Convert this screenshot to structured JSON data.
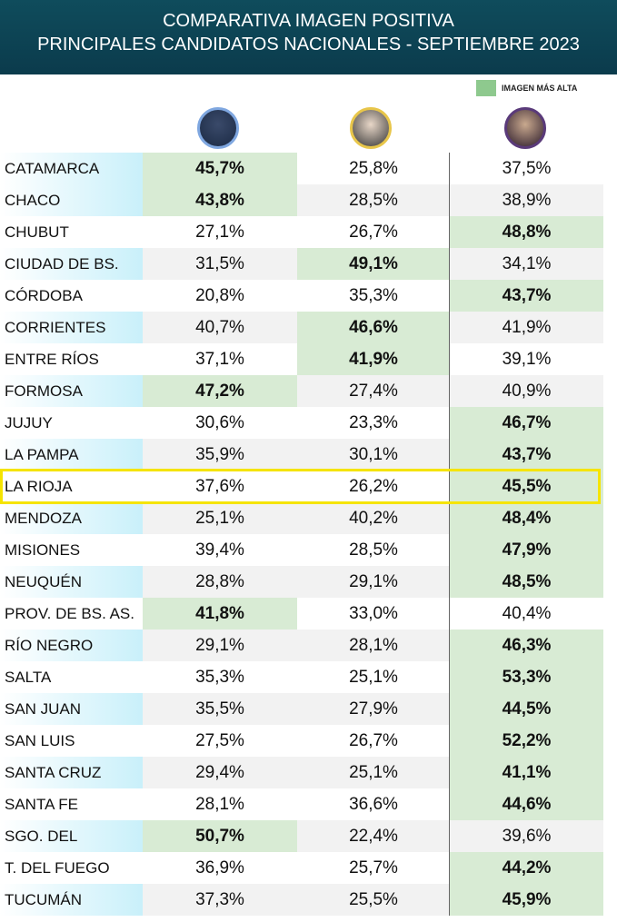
{
  "header": {
    "title_line1": "COMPARATIVA IMAGEN POSITIVA",
    "title_line2": "PRINCIPALES CANDIDATOS NACIONALES - SEPTIEMBRE 2023"
  },
  "legend": {
    "label": "IMAGEN MÁS ALTA",
    "color": "#8ec98e"
  },
  "table": {
    "rows": [
      {
        "name": "CATAMARCA",
        "values": [
          "45,7%",
          "25,8%",
          "37,5%"
        ]
      },
      {
        "name": "CHACO",
        "values": [
          "43,8%",
          "28,5%",
          "38,9%"
        ]
      },
      {
        "name": "CHUBUT",
        "values": [
          "27,1%",
          "26,7%",
          "48,8%"
        ]
      },
      {
        "name": "CIUDAD DE BS. AS.",
        "values": [
          "31,5%",
          "49,1%",
          "34,1%"
        ]
      },
      {
        "name": "CÓRDOBA",
        "values": [
          "20,8%",
          "35,3%",
          "43,7%"
        ]
      },
      {
        "name": "CORRIENTES",
        "values": [
          "40,7%",
          "46,6%",
          "41,9%"
        ]
      },
      {
        "name": "ENTRE RÍOS",
        "values": [
          "37,1%",
          "41,9%",
          "39,1%"
        ]
      },
      {
        "name": "FORMOSA",
        "values": [
          "47,2%",
          "27,4%",
          "40,9%"
        ]
      },
      {
        "name": "JUJUY",
        "values": [
          "30,6%",
          "23,3%",
          "46,7%"
        ]
      },
      {
        "name": "LA PAMPA",
        "values": [
          "35,9%",
          "30,1%",
          "43,7%"
        ]
      },
      {
        "name": "LA RIOJA",
        "values": [
          "37,6%",
          "26,2%",
          "45,5%"
        ],
        "outlined": true
      },
      {
        "name": "MENDOZA",
        "values": [
          "25,1%",
          "40,2%",
          "48,4%"
        ]
      },
      {
        "name": "MISIONES",
        "values": [
          "39,4%",
          "28,5%",
          "47,9%"
        ]
      },
      {
        "name": "NEUQUÉN",
        "values": [
          "28,8%",
          "29,1%",
          "48,5%"
        ]
      },
      {
        "name": "PROV. DE BS. AS.",
        "values": [
          "41,8%",
          "33,0%",
          "40,4%"
        ]
      },
      {
        "name": "RÍO NEGRO",
        "values": [
          "29,1%",
          "28,1%",
          "46,3%"
        ]
      },
      {
        "name": "SALTA",
        "values": [
          "35,3%",
          "25,1%",
          "53,3%"
        ]
      },
      {
        "name": "SAN JUAN",
        "values": [
          "35,5%",
          "27,9%",
          "44,5%"
        ]
      },
      {
        "name": "SAN LUIS",
        "values": [
          "27,5%",
          "26,7%",
          "52,2%"
        ]
      },
      {
        "name": "SANTA CRUZ",
        "values": [
          "29,4%",
          "25,1%",
          "41,1%"
        ]
      },
      {
        "name": "SANTA FE",
        "values": [
          "28,1%",
          "36,6%",
          "44,6%"
        ]
      },
      {
        "name": "SGO. DEL ESTERO",
        "values": [
          "50,7%",
          "22,4%",
          "39,6%"
        ]
      },
      {
        "name": "T. DEL FUEGO",
        "values": [
          "36,9%",
          "25,7%",
          "44,2%"
        ]
      },
      {
        "name": "TUCUMÁN",
        "values": [
          "37,3%",
          "25,5%",
          "45,9%"
        ]
      }
    ]
  }
}
